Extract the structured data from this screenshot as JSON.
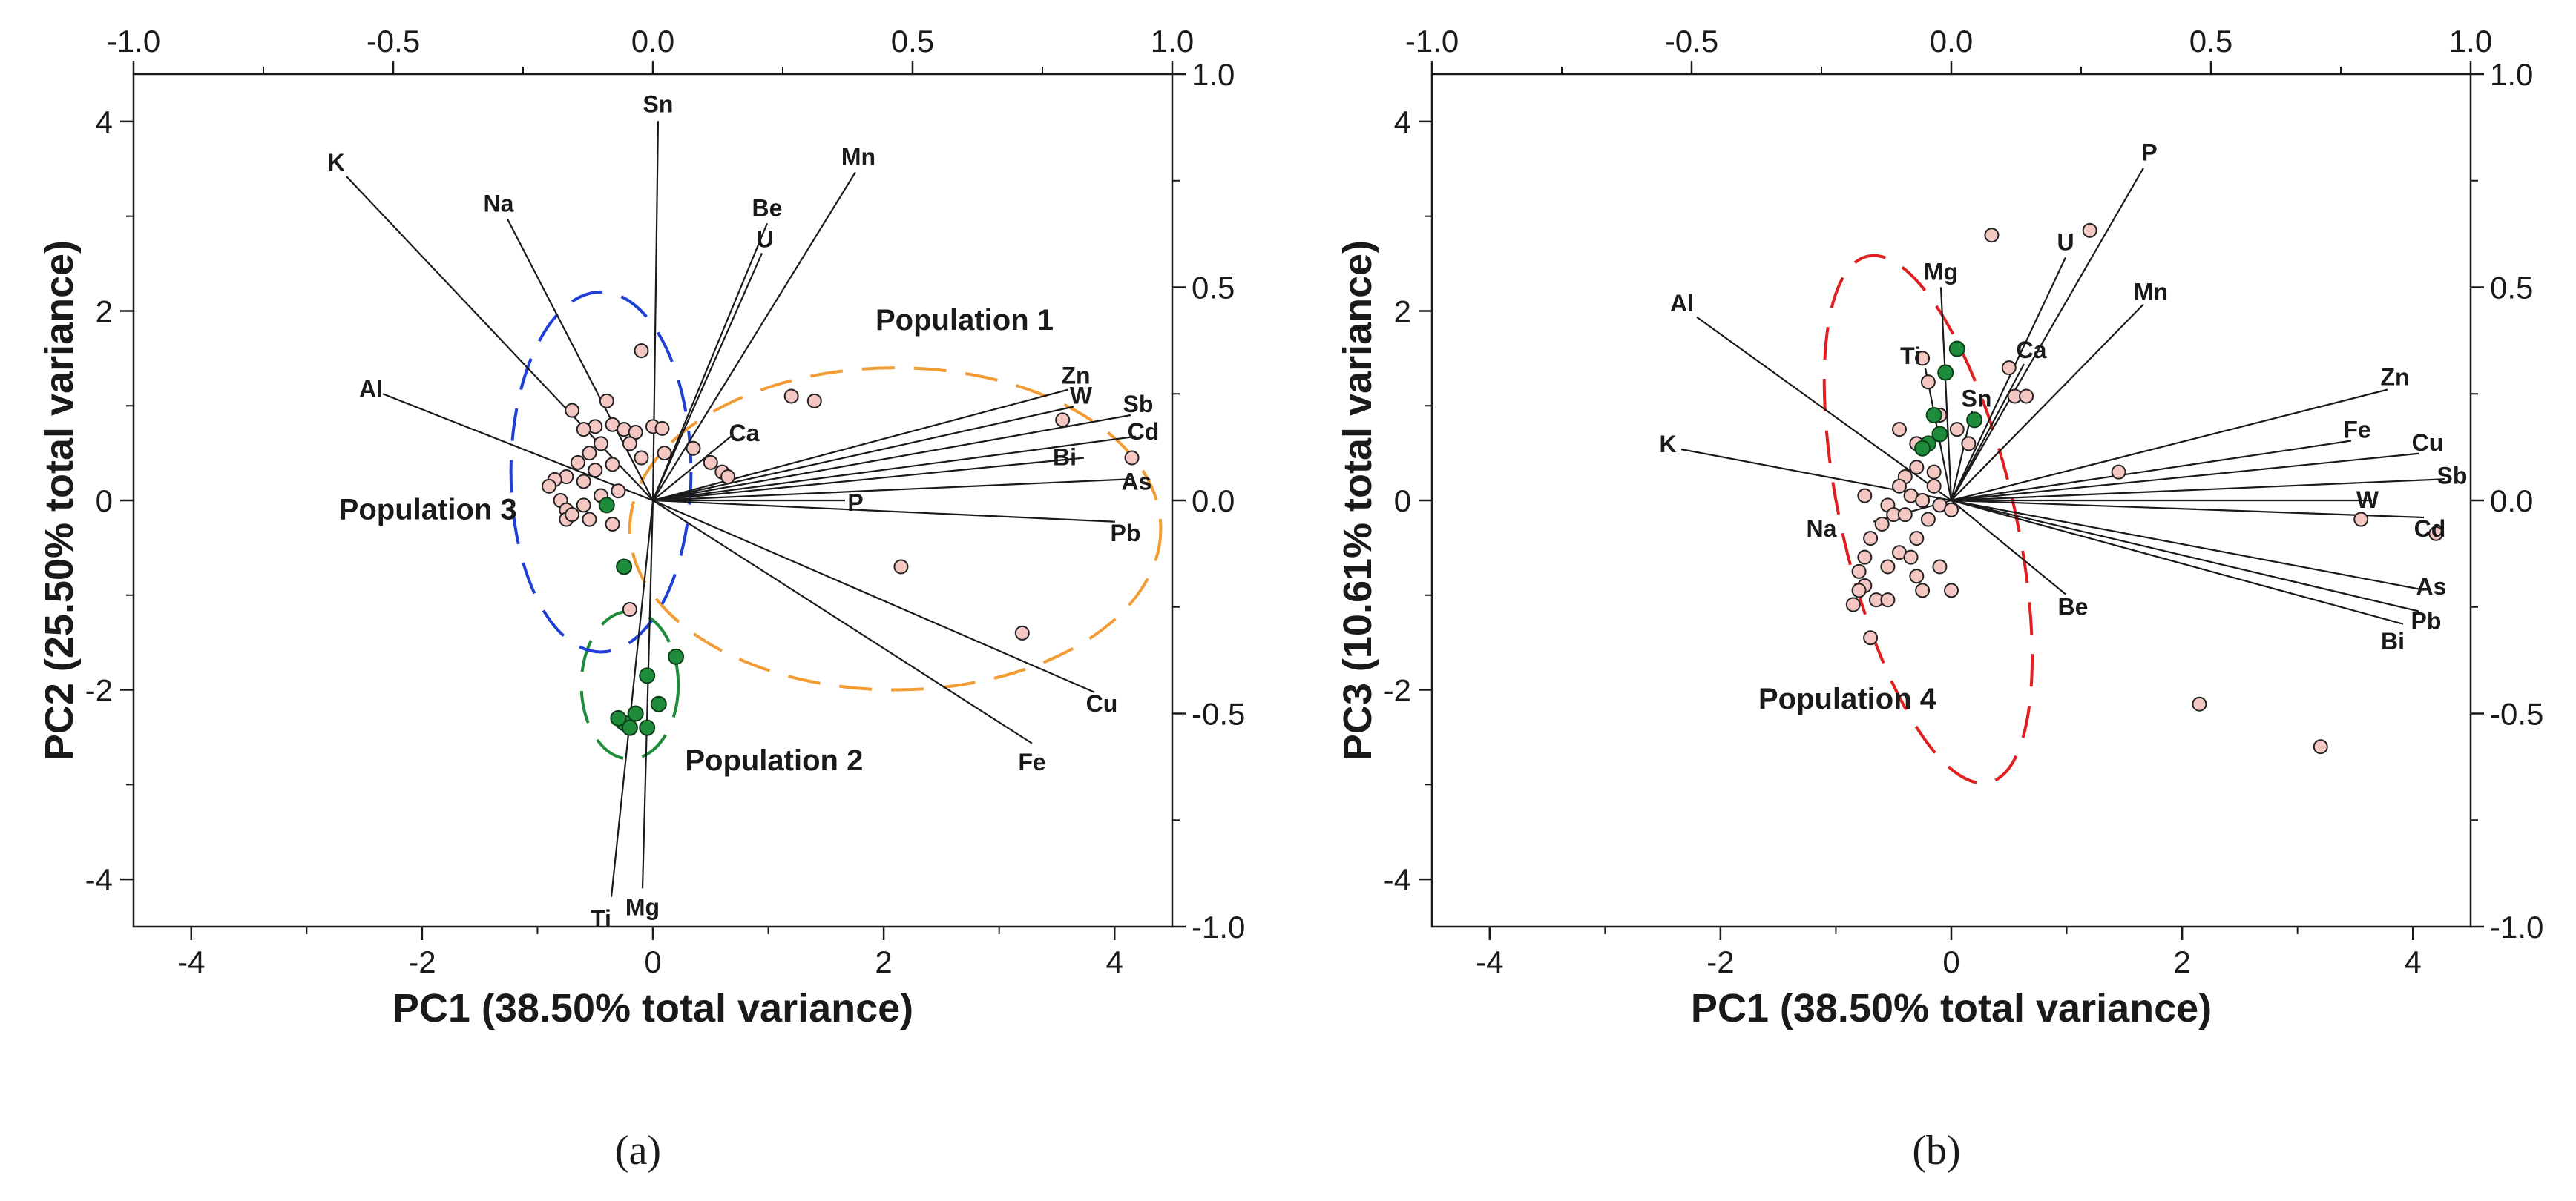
{
  "colors": {
    "sample_fill": "#f4c7c3",
    "group2_fill": "#1e8c3a",
    "population_1": "#f39c34",
    "population_2": "#1e8c3a",
    "population_3": "#1f3fd6",
    "population_4": "#e02020"
  },
  "chart_data": [
    {
      "id": "a",
      "type": "scatter",
      "subtype": "biplot",
      "panel_label": "(a)",
      "xlabel": "PC1 (38.50% total variance)",
      "ylabel": "PC2 (25.50% total variance)",
      "xlim": [
        -4.5,
        4.5
      ],
      "ylim": [
        -4.5,
        4.5
      ],
      "xticks": [
        -4,
        -2,
        0,
        2,
        4
      ],
      "yticks": [
        -4,
        -2,
        0,
        2,
        4
      ],
      "loading_lim": [
        -1.0,
        1.0
      ],
      "top_ticks": [
        "-1.0",
        "-0.5",
        "0.0",
        "0.5",
        "1.0"
      ],
      "right_ticks": [
        "1.0",
        "0.5",
        "0.0",
        "-0.5",
        "-1.0"
      ],
      "loadings": [
        {
          "label": "K",
          "x": -0.59,
          "y": 0.76
        },
        {
          "label": "Na",
          "x": -0.28,
          "y": 0.66
        },
        {
          "label": "Al",
          "x": -0.52,
          "y": 0.25
        },
        {
          "label": "Sn",
          "x": 0.01,
          "y": 0.89
        },
        {
          "label": "Be",
          "x": 0.22,
          "y": 0.65
        },
        {
          "label": "U",
          "x": 0.21,
          "y": 0.58
        },
        {
          "label": "Mn",
          "x": 0.39,
          "y": 0.77
        },
        {
          "label": "Ca",
          "x": 0.15,
          "y": 0.15
        },
        {
          "label": "Zn",
          "x": 0.8,
          "y": 0.26
        },
        {
          "label": "W",
          "x": 0.81,
          "y": 0.22
        },
        {
          "label": "Sb",
          "x": 0.92,
          "y": 0.2
        },
        {
          "label": "Cd",
          "x": 0.93,
          "y": 0.15
        },
        {
          "label": "Bi",
          "x": 0.83,
          "y": 0.1
        },
        {
          "label": "As",
          "x": 0.92,
          "y": 0.05
        },
        {
          "label": "P",
          "x": 0.37,
          "y": 0.0
        },
        {
          "label": "Pb",
          "x": 0.89,
          "y": -0.05
        },
        {
          "label": "Cu",
          "x": 0.85,
          "y": -0.45
        },
        {
          "label": "Fe",
          "x": 0.73,
          "y": -0.57
        },
        {
          "label": "Mg",
          "x": -0.02,
          "y": -0.91
        },
        {
          "label": "Ti",
          "x": -0.08,
          "y": -0.93
        }
      ],
      "samples": [
        [
          -0.1,
          1.58
        ],
        [
          -0.7,
          0.95
        ],
        [
          -0.4,
          1.05
        ],
        [
          -0.5,
          0.78
        ],
        [
          -0.6,
          0.75
        ],
        [
          -0.35,
          0.8
        ],
        [
          -0.25,
          0.75
        ],
        [
          -0.15,
          0.72
        ],
        [
          0.0,
          0.78
        ],
        [
          0.08,
          0.76
        ],
        [
          -0.2,
          0.6
        ],
        [
          -0.45,
          0.6
        ],
        [
          -0.55,
          0.5
        ],
        [
          -0.65,
          0.4
        ],
        [
          -0.5,
          0.32
        ],
        [
          -0.75,
          0.25
        ],
        [
          -0.85,
          0.22
        ],
        [
          -0.9,
          0.15
        ],
        [
          -0.6,
          0.2
        ],
        [
          -0.35,
          0.38
        ],
        [
          -0.1,
          0.45
        ],
        [
          0.1,
          0.5
        ],
        [
          -0.8,
          0.0
        ],
        [
          -0.75,
          -0.1
        ],
        [
          -0.6,
          -0.05
        ],
        [
          -0.45,
          0.05
        ],
        [
          -0.3,
          0.1
        ],
        [
          -0.75,
          -0.2
        ],
        [
          -0.55,
          -0.2
        ],
        [
          -0.35,
          -0.25
        ],
        [
          -0.7,
          -0.15
        ],
        [
          0.35,
          0.55
        ],
        [
          0.5,
          0.4
        ],
        [
          0.6,
          0.3
        ],
        [
          0.65,
          0.25
        ],
        [
          1.2,
          1.1
        ],
        [
          1.4,
          1.05
        ],
        [
          3.55,
          0.85
        ],
        [
          4.15,
          0.45
        ],
        [
          2.15,
          -0.7
        ],
        [
          3.2,
          -1.4
        ],
        [
          -0.2,
          -1.15
        ]
      ],
      "group_samples": [
        [
          -0.4,
          -0.05
        ],
        [
          -0.25,
          -0.7
        ],
        [
          0.2,
          -1.65
        ],
        [
          -0.05,
          -1.85
        ],
        [
          0.05,
          -2.15
        ],
        [
          -0.15,
          -2.25
        ],
        [
          -0.25,
          -2.35
        ],
        [
          -0.3,
          -2.3
        ],
        [
          -0.2,
          -2.4
        ],
        [
          -0.05,
          -2.4
        ]
      ],
      "ellipses": [
        {
          "name": "Population 1",
          "cx": 2.1,
          "cy": -0.3,
          "rx": 2.3,
          "ry": 1.7,
          "color": "#f39c34"
        },
        {
          "name": "Population 2",
          "cx": -0.2,
          "cy": -1.95,
          "rx": 0.42,
          "ry": 0.78,
          "color": "#1e8c3a"
        },
        {
          "name": "Population 3",
          "cx": -0.45,
          "cy": 0.3,
          "rx": 0.78,
          "ry": 1.9,
          "color": "#1f3fd6"
        }
      ],
      "annotations": [
        {
          "text": "Population 1",
          "x": 2.7,
          "y": 1.8
        },
        {
          "text": "Population 2",
          "x": 1.05,
          "y": -2.85
        },
        {
          "text": "Population 3",
          "x": -1.95,
          "y": -0.2
        }
      ]
    },
    {
      "id": "b",
      "type": "scatter",
      "subtype": "biplot",
      "panel_label": "(b)",
      "xlabel": "PC1 (38.50% total variance)",
      "ylabel": "PC3 (10.61% total variance)",
      "xlim": [
        -4.5,
        4.5
      ],
      "ylim": [
        -4.5,
        4.5
      ],
      "xticks": [
        -4,
        -2,
        0,
        2,
        4
      ],
      "yticks": [
        -4,
        -2,
        0,
        2,
        4
      ],
      "loading_lim": [
        -1.0,
        1.0
      ],
      "top_ticks": [
        "-1.0",
        "-0.5",
        "0.0",
        "0.5",
        "1.0"
      ],
      "right_ticks": [
        "1.0",
        "0.5",
        "0.0",
        "-0.5",
        "-1.0"
      ],
      "loadings": [
        {
          "label": "P",
          "x": 0.37,
          "y": 0.78
        },
        {
          "label": "U",
          "x": 0.22,
          "y": 0.57
        },
        {
          "label": "Mn",
          "x": 0.37,
          "y": 0.46
        },
        {
          "label": "Mg",
          "x": -0.02,
          "y": 0.5
        },
        {
          "label": "Ca",
          "x": 0.14,
          "y": 0.32
        },
        {
          "label": "Ti",
          "x": -0.05,
          "y": 0.31
        },
        {
          "label": "Sn",
          "x": 0.04,
          "y": 0.21
        },
        {
          "label": "Al",
          "x": -0.49,
          "y": 0.43
        },
        {
          "label": "K",
          "x": -0.52,
          "y": 0.12
        },
        {
          "label": "Zn",
          "x": 0.84,
          "y": 0.26
        },
        {
          "label": "Fe",
          "x": 0.77,
          "y": 0.14
        },
        {
          "label": "Cu",
          "x": 0.9,
          "y": 0.11
        },
        {
          "label": "Sb",
          "x": 0.95,
          "y": 0.05
        },
        {
          "label": "W",
          "x": 0.81,
          "y": 0.0
        },
        {
          "label": "Cd",
          "x": 0.91,
          "y": -0.04
        },
        {
          "label": "As",
          "x": 0.91,
          "y": -0.21
        },
        {
          "label": "Pb",
          "x": 0.9,
          "y": -0.26
        },
        {
          "label": "Bi",
          "x": 0.87,
          "y": -0.29
        },
        {
          "label": "Be",
          "x": 0.22,
          "y": -0.22
        },
        {
          "label": "Na",
          "x": -0.15,
          "y": -0.05
        }
      ],
      "samples": [
        [
          0.35,
          2.8
        ],
        [
          1.2,
          2.85
        ],
        [
          0.5,
          1.4
        ],
        [
          0.55,
          1.1
        ],
        [
          0.65,
          1.1
        ],
        [
          1.45,
          0.3
        ],
        [
          3.55,
          -0.2
        ],
        [
          4.2,
          -0.35
        ],
        [
          2.15,
          -2.15
        ],
        [
          3.2,
          -2.6
        ],
        [
          -0.25,
          1.5
        ],
        [
          -0.2,
          1.25
        ],
        [
          0.15,
          0.6
        ],
        [
          -0.1,
          0.9
        ],
        [
          -0.25,
          0.55
        ],
        [
          0.05,
          0.75
        ],
        [
          -0.15,
          0.3
        ],
        [
          -0.3,
          0.35
        ],
        [
          -0.4,
          0.25
        ],
        [
          -0.45,
          0.15
        ],
        [
          -0.35,
          0.05
        ],
        [
          -0.25,
          0.0
        ],
        [
          -0.55,
          -0.05
        ],
        [
          -0.5,
          -0.15
        ],
        [
          -0.4,
          -0.15
        ],
        [
          -0.2,
          -0.2
        ],
        [
          -0.6,
          -0.25
        ],
        [
          -0.7,
          -0.4
        ],
        [
          -0.45,
          -0.55
        ],
        [
          -0.35,
          -0.6
        ],
        [
          -0.3,
          -0.4
        ],
        [
          -0.55,
          -0.7
        ],
        [
          -0.75,
          -0.6
        ],
        [
          -0.8,
          -0.75
        ],
        [
          -0.75,
          -0.9
        ],
        [
          -0.8,
          -0.95
        ],
        [
          -0.65,
          -1.05
        ],
        [
          -0.55,
          -1.05
        ],
        [
          -0.3,
          -0.8
        ],
        [
          -0.25,
          -0.95
        ],
        [
          -0.1,
          -0.7
        ],
        [
          0.0,
          -0.95
        ],
        [
          -0.75,
          0.05
        ],
        [
          -0.85,
          -1.1
        ],
        [
          -0.7,
          -1.45
        ],
        [
          -0.1,
          -0.05
        ],
        [
          0.0,
          -0.1
        ],
        [
          -0.15,
          0.15
        ],
        [
          -0.45,
          0.75
        ],
        [
          -0.3,
          0.6
        ]
      ],
      "group_samples": [
        [
          0.05,
          1.6
        ],
        [
          -0.05,
          1.35
        ],
        [
          -0.15,
          0.9
        ],
        [
          0.2,
          0.85
        ],
        [
          -0.1,
          0.7
        ],
        [
          -0.2,
          0.6
        ],
        [
          -0.25,
          0.55
        ]
      ],
      "ellipses": [
        {
          "name": "Population 4",
          "cx": -0.2,
          "cy": -0.2,
          "rx": 0.75,
          "ry": 2.85,
          "angle": -13,
          "color": "#e02020"
        }
      ],
      "annotations": [
        {
          "text": "Population 4",
          "x": -0.9,
          "y": -2.2
        }
      ]
    }
  ]
}
